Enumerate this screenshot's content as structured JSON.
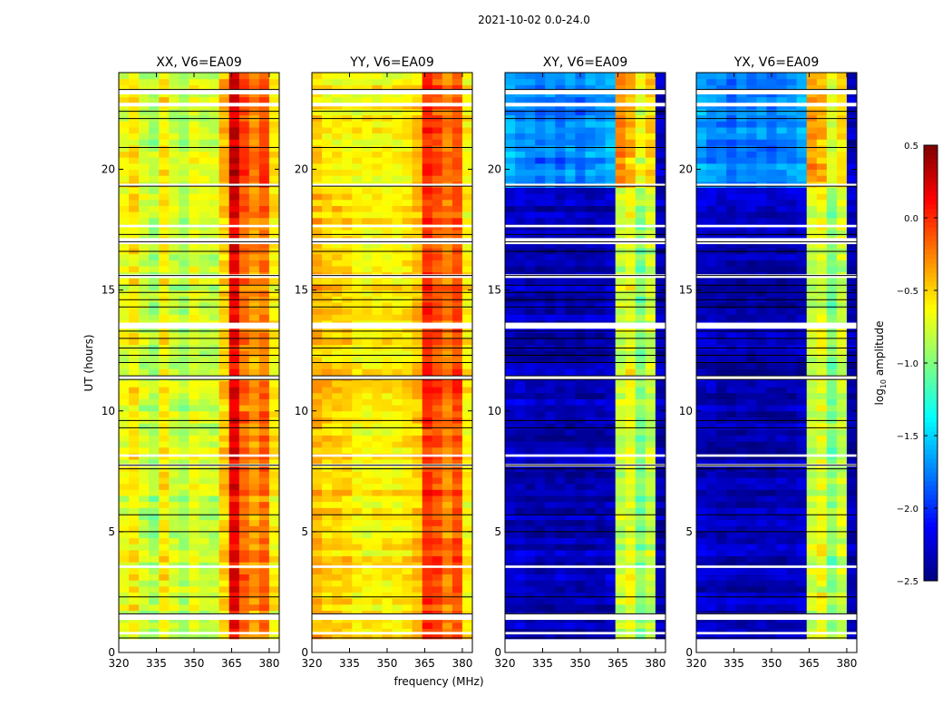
{
  "chart_data": {
    "type": "heatmap",
    "title": "2021-10-02 0.0-24.0",
    "xlabel": "frequency (MHz)",
    "ylabel": "UT (hours)",
    "xlim": [
      320,
      384
    ],
    "ylim": [
      0,
      24
    ],
    "xticks": [
      320,
      335,
      350,
      365,
      380
    ],
    "yticks": [
      0,
      5,
      10,
      15,
      20
    ],
    "freq_bin_edges_start": [
      320,
      324,
      328,
      332,
      336,
      340,
      344,
      348,
      352,
      356,
      360,
      364,
      368,
      372,
      376,
      380
    ],
    "freq_bin_width_mhz": 4,
    "colorbar": {
      "label": "log10 amplitude",
      "label_main": "log",
      "label_sub": "10",
      "label_rest": " amplitude",
      "range": [
        -2.5,
        0.5
      ],
      "ticks": [
        "0.5",
        "0.0",
        "−0.5",
        "−1.0",
        "−1.5",
        "−2.0",
        "−2.5"
      ],
      "tick_values": [
        0.5,
        0.0,
        -0.5,
        -1.0,
        -1.5,
        -2.0,
        -2.5
      ],
      "colormap": "jet"
    },
    "panels": [
      {
        "title": "XX, V6=EA09",
        "profile": [
          -0.7,
          -0.6,
          -0.8,
          -0.9,
          -0.6,
          -0.8,
          -0.9,
          -0.7,
          -0.8,
          -0.8,
          -0.5,
          0.15,
          -0.2,
          -0.35,
          -0.2,
          -0.6
        ],
        "upper_profile": [
          -0.7,
          -0.6,
          -0.8,
          -0.9,
          -0.6,
          -0.8,
          -0.9,
          -0.7,
          -0.8,
          -0.8,
          -0.4,
          0.25,
          -0.1,
          -0.3,
          -0.1,
          -0.6
        ]
      },
      {
        "title": "YY, V6=EA09",
        "profile": [
          -0.4,
          -0.5,
          -0.5,
          -0.5,
          -0.6,
          -0.6,
          -0.6,
          -0.6,
          -0.6,
          -0.55,
          -0.45,
          0.0,
          -0.1,
          -0.25,
          -0.1,
          -0.6
        ],
        "upper_profile": [
          -0.5,
          -0.6,
          -0.6,
          -0.6,
          -0.6,
          -0.6,
          -0.6,
          -0.6,
          -0.6,
          -0.55,
          -0.45,
          0.05,
          -0.05,
          -0.2,
          -0.1,
          -0.6
        ]
      },
      {
        "title": "XY, V6=EA09",
        "profile": [
          -2.3,
          -2.3,
          -2.35,
          -2.35,
          -2.35,
          -2.35,
          -2.35,
          -2.35,
          -2.35,
          -2.35,
          -2.3,
          -0.8,
          -0.7,
          -1.0,
          -0.8,
          -2.35
        ],
        "upper_profile": [
          -1.6,
          -1.7,
          -1.7,
          -1.8,
          -1.7,
          -1.8,
          -1.7,
          -1.8,
          -1.7,
          -1.7,
          -1.6,
          -0.3,
          -0.4,
          -0.7,
          -0.5,
          -2.3
        ]
      },
      {
        "title": "YX, V6=EA09",
        "profile": [
          -2.3,
          -2.3,
          -2.35,
          -2.35,
          -2.35,
          -2.35,
          -2.35,
          -2.35,
          -2.35,
          -2.35,
          -2.3,
          -0.8,
          -0.7,
          -1.0,
          -0.8,
          -2.35
        ],
        "upper_profile": [
          -1.6,
          -1.7,
          -1.7,
          -1.8,
          -1.7,
          -1.8,
          -1.7,
          -1.8,
          -1.7,
          -1.7,
          -1.6,
          -0.3,
          -0.4,
          -0.7,
          -0.5,
          -2.3
        ]
      }
    ],
    "upper_hours_start": 19.2,
    "flagged_hour_ranges": [
      [
        0,
        0.55
      ],
      [
        0.75,
        0.85
      ],
      [
        1.35,
        1.62
      ],
      [
        3.5,
        3.6
      ],
      [
        7.7,
        7.8
      ],
      [
        8.1,
        8.2
      ],
      [
        11.3,
        11.45
      ],
      [
        13.4,
        13.65
      ],
      [
        15.5,
        15.65
      ],
      [
        16.9,
        17.15
      ],
      [
        17.6,
        17.7
      ],
      [
        19.3,
        19.4
      ],
      [
        22.6,
        22.75
      ],
      [
        23.1,
        23.3
      ]
    ],
    "black_line_hours": [
      0.6,
      1.6,
      2.3,
      5.0,
      5.7,
      7.6,
      7.75,
      9.3,
      9.6,
      11.3,
      11.45,
      12.0,
      12.3,
      12.6,
      13.0,
      13.3,
      14.3,
      14.6,
      14.9,
      15.2,
      15.6,
      16.6,
      17.0,
      17.3,
      19.3,
      20.9,
      22.1,
      22.4,
      23.3
    ]
  }
}
